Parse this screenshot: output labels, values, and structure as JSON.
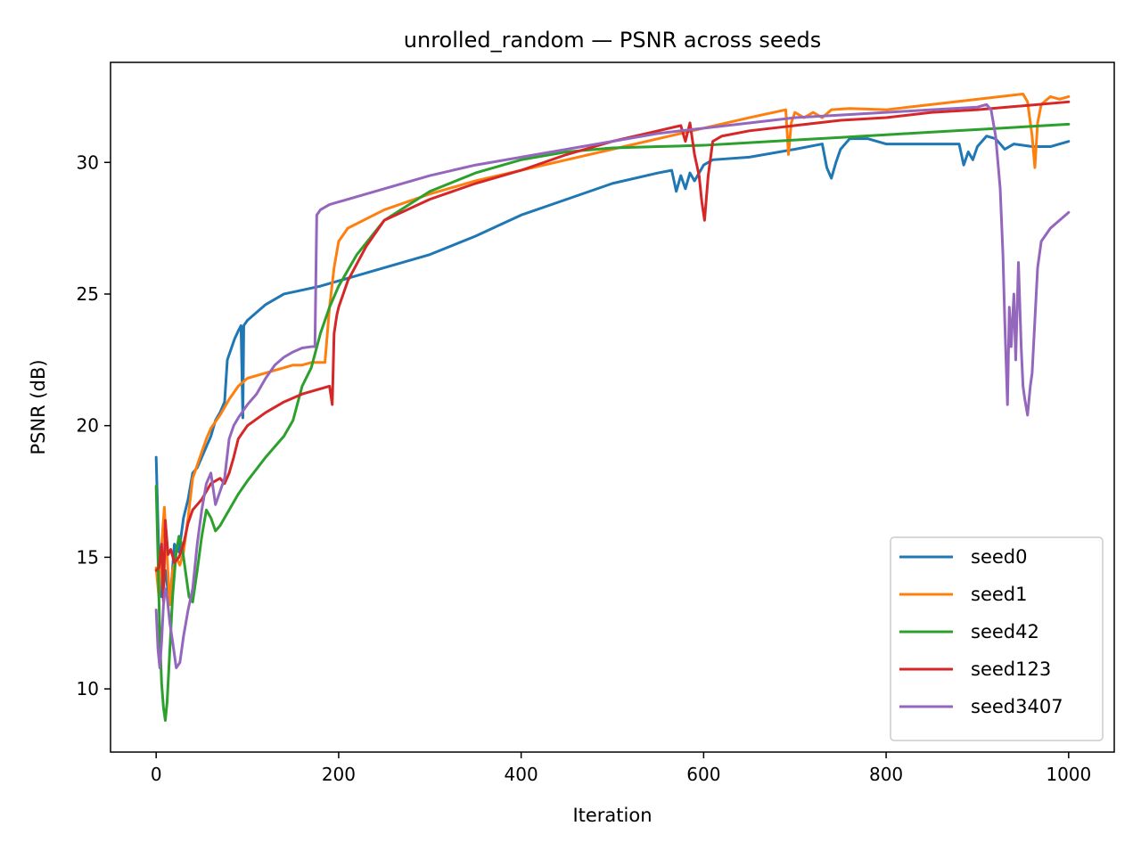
{
  "chart_data": {
    "type": "line",
    "title": "unrolled_random — PSNR across seeds",
    "xlabel": "Iteration",
    "ylabel": "PSNR (dB)",
    "xlim": [
      -50,
      1050
    ],
    "ylim": [
      7.6,
      33.8
    ],
    "xticks": [
      0,
      200,
      400,
      600,
      800,
      1000
    ],
    "yticks": [
      10,
      15,
      20,
      25,
      30
    ],
    "grid": false,
    "legend_position": "bottom-right",
    "series": [
      {
        "name": "seed0",
        "color": "#1f77b4",
        "points": [
          [
            0,
            18.8
          ],
          [
            3,
            15.0
          ],
          [
            6,
            13.5
          ],
          [
            10,
            14.5
          ],
          [
            15,
            13.2
          ],
          [
            20,
            15.5
          ],
          [
            25,
            15.2
          ],
          [
            30,
            16.5
          ],
          [
            35,
            17.2
          ],
          [
            40,
            18.2
          ],
          [
            45,
            18.4
          ],
          [
            50,
            18.8
          ],
          [
            55,
            19.2
          ],
          [
            60,
            19.6
          ],
          [
            65,
            20.2
          ],
          [
            70,
            20.5
          ],
          [
            75,
            20.9
          ],
          [
            78,
            22.5
          ],
          [
            82,
            22.9
          ],
          [
            86,
            23.3
          ],
          [
            90,
            23.6
          ],
          [
            93,
            23.8
          ],
          [
            95,
            20.3
          ],
          [
            96,
            23.8
          ],
          [
            100,
            24.0
          ],
          [
            110,
            24.3
          ],
          [
            120,
            24.6
          ],
          [
            140,
            25.0
          ],
          [
            160,
            25.15
          ],
          [
            180,
            25.3
          ],
          [
            200,
            25.5
          ],
          [
            250,
            26.0
          ],
          [
            300,
            26.5
          ],
          [
            350,
            27.2
          ],
          [
            400,
            28.0
          ],
          [
            450,
            28.6
          ],
          [
            500,
            29.2
          ],
          [
            550,
            29.6
          ],
          [
            565,
            29.7
          ],
          [
            570,
            28.9
          ],
          [
            575,
            29.5
          ],
          [
            580,
            29.0
          ],
          [
            585,
            29.6
          ],
          [
            590,
            29.3
          ],
          [
            600,
            29.9
          ],
          [
            610,
            30.1
          ],
          [
            650,
            30.2
          ],
          [
            700,
            30.5
          ],
          [
            730,
            30.7
          ],
          [
            735,
            29.8
          ],
          [
            740,
            29.4
          ],
          [
            745,
            30.0
          ],
          [
            750,
            30.5
          ],
          [
            760,
            30.9
          ],
          [
            780,
            30.9
          ],
          [
            800,
            30.7
          ],
          [
            850,
            30.7
          ],
          [
            880,
            30.7
          ],
          [
            885,
            29.9
          ],
          [
            890,
            30.4
          ],
          [
            895,
            30.1
          ],
          [
            900,
            30.6
          ],
          [
            910,
            31.0
          ],
          [
            920,
            30.9
          ],
          [
            925,
            30.7
          ],
          [
            930,
            30.5
          ],
          [
            940,
            30.7
          ],
          [
            960,
            30.6
          ],
          [
            980,
            30.6
          ],
          [
            1000,
            30.8
          ]
        ]
      },
      {
        "name": "seed1",
        "color": "#ff7f0e",
        "points": [
          [
            0,
            14.6
          ],
          [
            3,
            13.5
          ],
          [
            6,
            15.5
          ],
          [
            9,
            16.9
          ],
          [
            12,
            15.0
          ],
          [
            15,
            13.2
          ],
          [
            18,
            14.5
          ],
          [
            22,
            15.0
          ],
          [
            26,
            14.7
          ],
          [
            30,
            15.2
          ],
          [
            35,
            16.5
          ],
          [
            40,
            18.0
          ],
          [
            45,
            18.5
          ],
          [
            50,
            19.0
          ],
          [
            55,
            19.5
          ],
          [
            60,
            19.9
          ],
          [
            70,
            20.4
          ],
          [
            80,
            21.0
          ],
          [
            90,
            21.5
          ],
          [
            100,
            21.8
          ],
          [
            120,
            22.0
          ],
          [
            140,
            22.2
          ],
          [
            150,
            22.3
          ],
          [
            160,
            22.3
          ],
          [
            170,
            22.4
          ],
          [
            180,
            22.4
          ],
          [
            185,
            22.4
          ],
          [
            190,
            24.5
          ],
          [
            195,
            26.0
          ],
          [
            200,
            27.0
          ],
          [
            210,
            27.5
          ],
          [
            250,
            28.2
          ],
          [
            300,
            28.8
          ],
          [
            350,
            29.3
          ],
          [
            400,
            29.7
          ],
          [
            450,
            30.1
          ],
          [
            500,
            30.5
          ],
          [
            550,
            30.9
          ],
          [
            600,
            31.3
          ],
          [
            650,
            31.7
          ],
          [
            690,
            32.0
          ],
          [
            693,
            30.3
          ],
          [
            696,
            31.5
          ],
          [
            700,
            31.9
          ],
          [
            710,
            31.7
          ],
          [
            720,
            31.9
          ],
          [
            730,
            31.7
          ],
          [
            740,
            32.0
          ],
          [
            760,
            32.05
          ],
          [
            800,
            32.0
          ],
          [
            850,
            32.2
          ],
          [
            900,
            32.4
          ],
          [
            950,
            32.6
          ],
          [
            955,
            32.3
          ],
          [
            960,
            31.0
          ],
          [
            963,
            29.8
          ],
          [
            966,
            31.5
          ],
          [
            970,
            32.2
          ],
          [
            980,
            32.5
          ],
          [
            990,
            32.4
          ],
          [
            1000,
            32.5
          ]
        ]
      },
      {
        "name": "seed42",
        "color": "#2ca02c",
        "points": [
          [
            0,
            17.7
          ],
          [
            2,
            15.0
          ],
          [
            4,
            12.0
          ],
          [
            6,
            10.2
          ],
          [
            8,
            9.3
          ],
          [
            10,
            8.8
          ],
          [
            12,
            9.5
          ],
          [
            15,
            11.5
          ],
          [
            18,
            13.5
          ],
          [
            22,
            15.2
          ],
          [
            25,
            15.8
          ],
          [
            28,
            15.5
          ],
          [
            32,
            14.5
          ],
          [
            36,
            13.5
          ],
          [
            40,
            13.3
          ],
          [
            45,
            14.5
          ],
          [
            50,
            15.8
          ],
          [
            55,
            16.8
          ],
          [
            60,
            16.5
          ],
          [
            65,
            16.0
          ],
          [
            70,
            16.2
          ],
          [
            80,
            16.8
          ],
          [
            90,
            17.4
          ],
          [
            100,
            17.9
          ],
          [
            120,
            18.8
          ],
          [
            140,
            19.6
          ],
          [
            150,
            20.2
          ],
          [
            160,
            21.5
          ],
          [
            170,
            22.2
          ],
          [
            180,
            23.5
          ],
          [
            190,
            24.5
          ],
          [
            200,
            25.3
          ],
          [
            220,
            26.5
          ],
          [
            250,
            27.8
          ],
          [
            300,
            28.9
          ],
          [
            350,
            29.6
          ],
          [
            400,
            30.1
          ],
          [
            450,
            30.4
          ],
          [
            500,
            30.55
          ],
          [
            550,
            30.6
          ],
          [
            600,
            30.65
          ],
          [
            650,
            30.75
          ],
          [
            700,
            30.85
          ],
          [
            750,
            30.95
          ],
          [
            800,
            31.05
          ],
          [
            850,
            31.15
          ],
          [
            900,
            31.25
          ],
          [
            950,
            31.35
          ],
          [
            1000,
            31.45
          ]
        ]
      },
      {
        "name": "seed123",
        "color": "#d62728",
        "points": [
          [
            0,
            14.5
          ],
          [
            3,
            14.6
          ],
          [
            6,
            15.5
          ],
          [
            8,
            13.3
          ],
          [
            10,
            16.4
          ],
          [
            13,
            15.1
          ],
          [
            16,
            15.3
          ],
          [
            20,
            14.8
          ],
          [
            25,
            15.0
          ],
          [
            30,
            15.5
          ],
          [
            35,
            16.3
          ],
          [
            40,
            16.8
          ],
          [
            45,
            17.0
          ],
          [
            50,
            17.2
          ],
          [
            55,
            17.5
          ],
          [
            60,
            17.8
          ],
          [
            65,
            17.9
          ],
          [
            70,
            18.0
          ],
          [
            75,
            17.8
          ],
          [
            80,
            18.2
          ],
          [
            85,
            18.8
          ],
          [
            90,
            19.5
          ],
          [
            100,
            20.0
          ],
          [
            120,
            20.5
          ],
          [
            140,
            20.9
          ],
          [
            160,
            21.2
          ],
          [
            180,
            21.4
          ],
          [
            190,
            21.5
          ],
          [
            193,
            20.8
          ],
          [
            195,
            23.5
          ],
          [
            198,
            24.2
          ],
          [
            200,
            24.5
          ],
          [
            205,
            25.0
          ],
          [
            210,
            25.5
          ],
          [
            230,
            26.8
          ],
          [
            250,
            27.8
          ],
          [
            300,
            28.6
          ],
          [
            350,
            29.2
          ],
          [
            400,
            29.7
          ],
          [
            450,
            30.3
          ],
          [
            500,
            30.8
          ],
          [
            550,
            31.2
          ],
          [
            575,
            31.4
          ],
          [
            580,
            30.8
          ],
          [
            585,
            31.5
          ],
          [
            590,
            30.3
          ],
          [
            595,
            29.5
          ],
          [
            598,
            28.5
          ],
          [
            601,
            27.8
          ],
          [
            605,
            29.5
          ],
          [
            610,
            30.8
          ],
          [
            620,
            31.0
          ],
          [
            650,
            31.2
          ],
          [
            700,
            31.4
          ],
          [
            750,
            31.6
          ],
          [
            800,
            31.7
          ],
          [
            850,
            31.9
          ],
          [
            900,
            32.0
          ],
          [
            950,
            32.15
          ],
          [
            1000,
            32.3
          ]
        ]
      },
      {
        "name": "seed3407",
        "color": "#9467bd",
        "points": [
          [
            0,
            13.0
          ],
          [
            2,
            11.5
          ],
          [
            4,
            10.8
          ],
          [
            6,
            11.8
          ],
          [
            8,
            13.2
          ],
          [
            10,
            13.8
          ],
          [
            12,
            13.5
          ],
          [
            15,
            12.5
          ],
          [
            18,
            11.8
          ],
          [
            22,
            10.8
          ],
          [
            26,
            11.0
          ],
          [
            30,
            12.0
          ],
          [
            35,
            13.0
          ],
          [
            40,
            13.8
          ],
          [
            45,
            15.5
          ],
          [
            50,
            16.8
          ],
          [
            55,
            17.8
          ],
          [
            60,
            18.2
          ],
          [
            65,
            17.0
          ],
          [
            70,
            17.5
          ],
          [
            75,
            18.0
          ],
          [
            80,
            19.5
          ],
          [
            85,
            20.0
          ],
          [
            90,
            20.3
          ],
          [
            100,
            20.8
          ],
          [
            110,
            21.2
          ],
          [
            120,
            21.8
          ],
          [
            130,
            22.3
          ],
          [
            140,
            22.6
          ],
          [
            150,
            22.8
          ],
          [
            160,
            22.95
          ],
          [
            170,
            23.0
          ],
          [
            174,
            23.0
          ],
          [
            176,
            28.0
          ],
          [
            180,
            28.2
          ],
          [
            190,
            28.4
          ],
          [
            200,
            28.5
          ],
          [
            250,
            29.0
          ],
          [
            300,
            29.5
          ],
          [
            350,
            29.9
          ],
          [
            400,
            30.2
          ],
          [
            450,
            30.5
          ],
          [
            500,
            30.8
          ],
          [
            550,
            31.1
          ],
          [
            600,
            31.3
          ],
          [
            650,
            31.5
          ],
          [
            700,
            31.7
          ],
          [
            750,
            31.8
          ],
          [
            800,
            31.9
          ],
          [
            850,
            32.0
          ],
          [
            900,
            32.1
          ],
          [
            910,
            32.2
          ],
          [
            915,
            32.0
          ],
          [
            920,
            31.0
          ],
          [
            925,
            29.0
          ],
          [
            928,
            26.5
          ],
          [
            930,
            24.0
          ],
          [
            933,
            20.8
          ],
          [
            935,
            24.5
          ],
          [
            937,
            23.0
          ],
          [
            940,
            25.0
          ],
          [
            942,
            22.5
          ],
          [
            945,
            26.2
          ],
          [
            948,
            23.0
          ],
          [
            950,
            21.5
          ],
          [
            952,
            21.0
          ],
          [
            955,
            20.4
          ],
          [
            958,
            21.5
          ],
          [
            960,
            22.0
          ],
          [
            963,
            24.0
          ],
          [
            966,
            26.0
          ],
          [
            970,
            27.0
          ],
          [
            980,
            27.5
          ],
          [
            990,
            27.8
          ],
          [
            1000,
            28.1
          ]
        ]
      }
    ]
  }
}
